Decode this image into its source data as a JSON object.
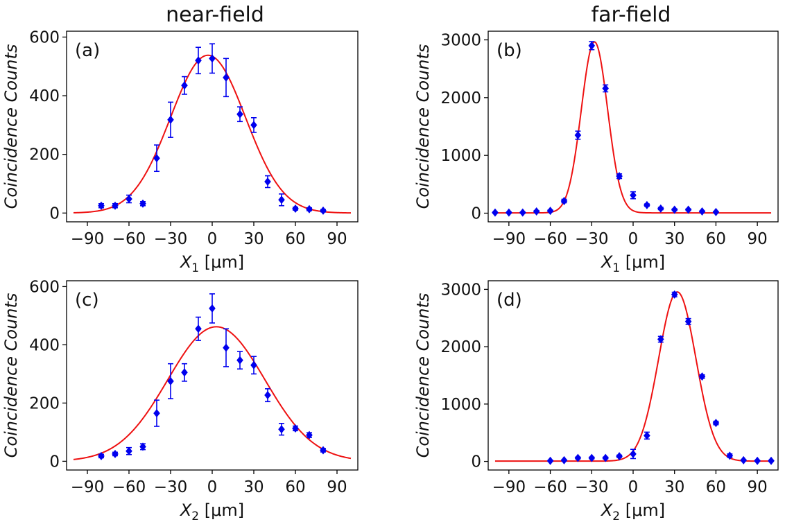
{
  "column_titles": {
    "left": "near-field",
    "right": "far-field"
  },
  "chart_data": [
    {
      "type": "scatter",
      "panel": "(a)",
      "column": "near-field",
      "xlabel": "X",
      "xlabel_sub": "1",
      "xlabel_unit": "[μm]",
      "ylabel": "Coincidence Counts",
      "xlim": [
        -105,
        105
      ],
      "ylim": [
        -30,
        620
      ],
      "xticks": [
        -90,
        -60,
        -30,
        0,
        30,
        60,
        90
      ],
      "xtick_labels": [
        "−90",
        "−60",
        "−30",
        "0",
        "30",
        "60",
        "90"
      ],
      "yticks": [
        0,
        200,
        400,
        600
      ],
      "ytick_labels": [
        "0",
        "200",
        "400",
        "600"
      ],
      "series": [
        {
          "name": "data",
          "color": "#0000ee",
          "x": [
            -80,
            -70,
            -60,
            -50,
            -40,
            -30,
            -20,
            -10,
            0,
            10,
            20,
            30,
            40,
            50,
            60,
            70,
            80
          ],
          "y": [
            25,
            25,
            48,
            32,
            187,
            318,
            435,
            520,
            527,
            462,
            337,
            300,
            107,
            45,
            15,
            13,
            8
          ],
          "err": [
            7,
            7,
            13,
            7,
            45,
            60,
            30,
            45,
            50,
            65,
            25,
            25,
            20,
            20,
            5,
            5,
            4
          ]
        },
        {
          "name": "fit",
          "type": "gaussian",
          "color": "#ee1111",
          "amplitude": 538,
          "center": -3,
          "sigma": 27,
          "offset": 0
        }
      ]
    },
    {
      "type": "scatter",
      "panel": "(b)",
      "column": "far-field",
      "xlabel": "X",
      "xlabel_sub": "1",
      "xlabel_unit": "[μm]",
      "ylabel": "Coincidence Counts",
      "xlim": [
        -105,
        105
      ],
      "ylim": [
        -150,
        3150
      ],
      "xticks": [
        -90,
        -60,
        -30,
        0,
        30,
        60,
        90
      ],
      "xtick_labels": [
        "−90",
        "−60",
        "−30",
        "0",
        "30",
        "60",
        "90"
      ],
      "yticks": [
        0,
        1000,
        2000,
        3000
      ],
      "ytick_labels": [
        "0",
        "1000",
        "2000",
        "3000"
      ],
      "series": [
        {
          "name": "data",
          "color": "#0000ee",
          "x": [
            -100,
            -90,
            -80,
            -70,
            -60,
            -50,
            -40,
            -30,
            -20,
            -10,
            0,
            10,
            20,
            30,
            40,
            50,
            60
          ],
          "y": [
            10,
            10,
            10,
            30,
            40,
            210,
            1350,
            2900,
            2160,
            640,
            310,
            140,
            80,
            60,
            60,
            30,
            20
          ],
          "err": [
            10,
            10,
            10,
            15,
            15,
            30,
            70,
            70,
            60,
            40,
            60,
            20,
            20,
            15,
            15,
            10,
            10
          ]
        },
        {
          "name": "fit",
          "type": "gaussian",
          "color": "#ee1111",
          "amplitude": 2960,
          "center": -28,
          "sigma": 9.5,
          "offset": 5
        }
      ]
    },
    {
      "type": "scatter",
      "panel": "(c)",
      "column": "near-field",
      "xlabel": "X",
      "xlabel_sub": "2",
      "xlabel_unit": "[μm]",
      "ylabel": "Coincidence Counts",
      "xlim": [
        -105,
        105
      ],
      "ylim": [
        -30,
        620
      ],
      "xticks": [
        -90,
        -60,
        -30,
        0,
        30,
        60,
        90
      ],
      "xtick_labels": [
        "−90",
        "−60",
        "−30",
        "0",
        "30",
        "60",
        "90"
      ],
      "yticks": [
        0,
        200,
        400,
        600
      ],
      "ytick_labels": [
        "0",
        "200",
        "400",
        "600"
      ],
      "series": [
        {
          "name": "data",
          "color": "#0000ee",
          "x": [
            -80,
            -70,
            -60,
            -50,
            -40,
            -30,
            -20,
            -10,
            0,
            10,
            20,
            30,
            40,
            50,
            60,
            70,
            80
          ],
          "y": [
            18,
            25,
            35,
            50,
            165,
            275,
            305,
            455,
            525,
            390,
            347,
            330,
            227,
            110,
            113,
            90,
            38
          ],
          "err": [
            6,
            6,
            12,
            10,
            45,
            60,
            30,
            40,
            50,
            65,
            30,
            30,
            22,
            20,
            8,
            8,
            6
          ]
        },
        {
          "name": "fit",
          "type": "gaussian",
          "color": "#ee1111",
          "amplitude": 462,
          "center": 3,
          "sigma": 35,
          "offset": 0
        }
      ]
    },
    {
      "type": "scatter",
      "panel": "(d)",
      "column": "far-field",
      "xlabel": "X",
      "xlabel_sub": "2",
      "xlabel_unit": "[μm]",
      "ylabel": "Coincidence Counts",
      "xlim": [
        -105,
        105
      ],
      "ylim": [
        -150,
        3150
      ],
      "xticks": [
        -90,
        -60,
        -30,
        0,
        30,
        60,
        90
      ],
      "xtick_labels": [
        "−90",
        "−60",
        "−30",
        "0",
        "30",
        "60",
        "90"
      ],
      "yticks": [
        0,
        1000,
        2000,
        3000
      ],
      "ytick_labels": [
        "0",
        "1000",
        "2000",
        "3000"
      ],
      "series": [
        {
          "name": "data",
          "color": "#0000ee",
          "x": [
            -60,
            -50,
            -40,
            -30,
            -20,
            -10,
            0,
            10,
            20,
            30,
            40,
            50,
            60,
            70,
            80,
            90,
            100
          ],
          "y": [
            10,
            20,
            60,
            60,
            60,
            90,
            130,
            450,
            2130,
            2910,
            2440,
            1480,
            670,
            100,
            20,
            10,
            10
          ],
          "err": [
            10,
            10,
            15,
            15,
            15,
            20,
            80,
            60,
            50,
            40,
            50,
            30,
            30,
            30,
            10,
            10,
            10
          ]
        },
        {
          "name": "fit",
          "type": "gaussian",
          "color": "#ee1111",
          "amplitude": 2950,
          "center": 32,
          "sigma": 13.5,
          "offset": 5
        }
      ]
    }
  ]
}
